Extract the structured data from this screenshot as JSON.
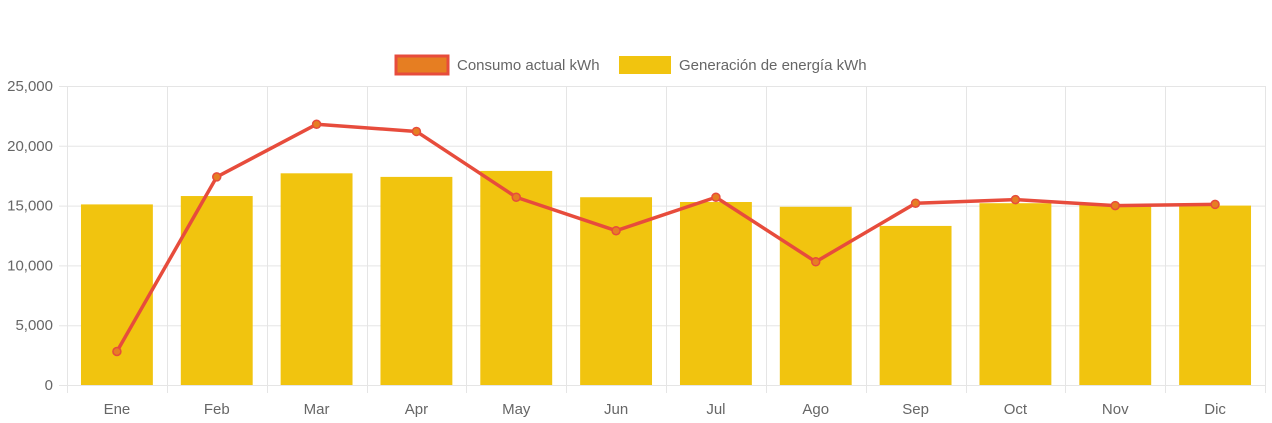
{
  "chart_data": {
    "type": "bar",
    "title": "",
    "xlabel": "",
    "ylabel": "",
    "categories": [
      "Ene",
      "Feb",
      "Mar",
      "Apr",
      "May",
      "Jun",
      "Jul",
      "Ago",
      "Sep",
      "Oct",
      "Nov",
      "Dic"
    ],
    "ylim": [
      0,
      25000
    ],
    "y_ticks": [
      0,
      5000,
      10000,
      15000,
      20000,
      25000
    ],
    "y_tick_labels": [
      "0",
      "5,000",
      "10,000",
      "15,000",
      "20,000",
      "25,000"
    ],
    "grid": true,
    "legend_position": "top",
    "series": [
      {
        "name": "Consumo actual kWh",
        "type": "line",
        "color": "#e74c3c",
        "point_color": "#e67e22",
        "values": [
          2800,
          17400,
          21800,
          21200,
          15700,
          12900,
          15700,
          10300,
          15200,
          15500,
          15000,
          15100
        ]
      },
      {
        "name": "Generación de energía kWh",
        "type": "bar",
        "color": "#f1c40f",
        "values": [
          15100,
          15800,
          17700,
          17400,
          17900,
          15700,
          15300,
          14900,
          13300,
          15200,
          15100,
          15000
        ]
      }
    ]
  }
}
